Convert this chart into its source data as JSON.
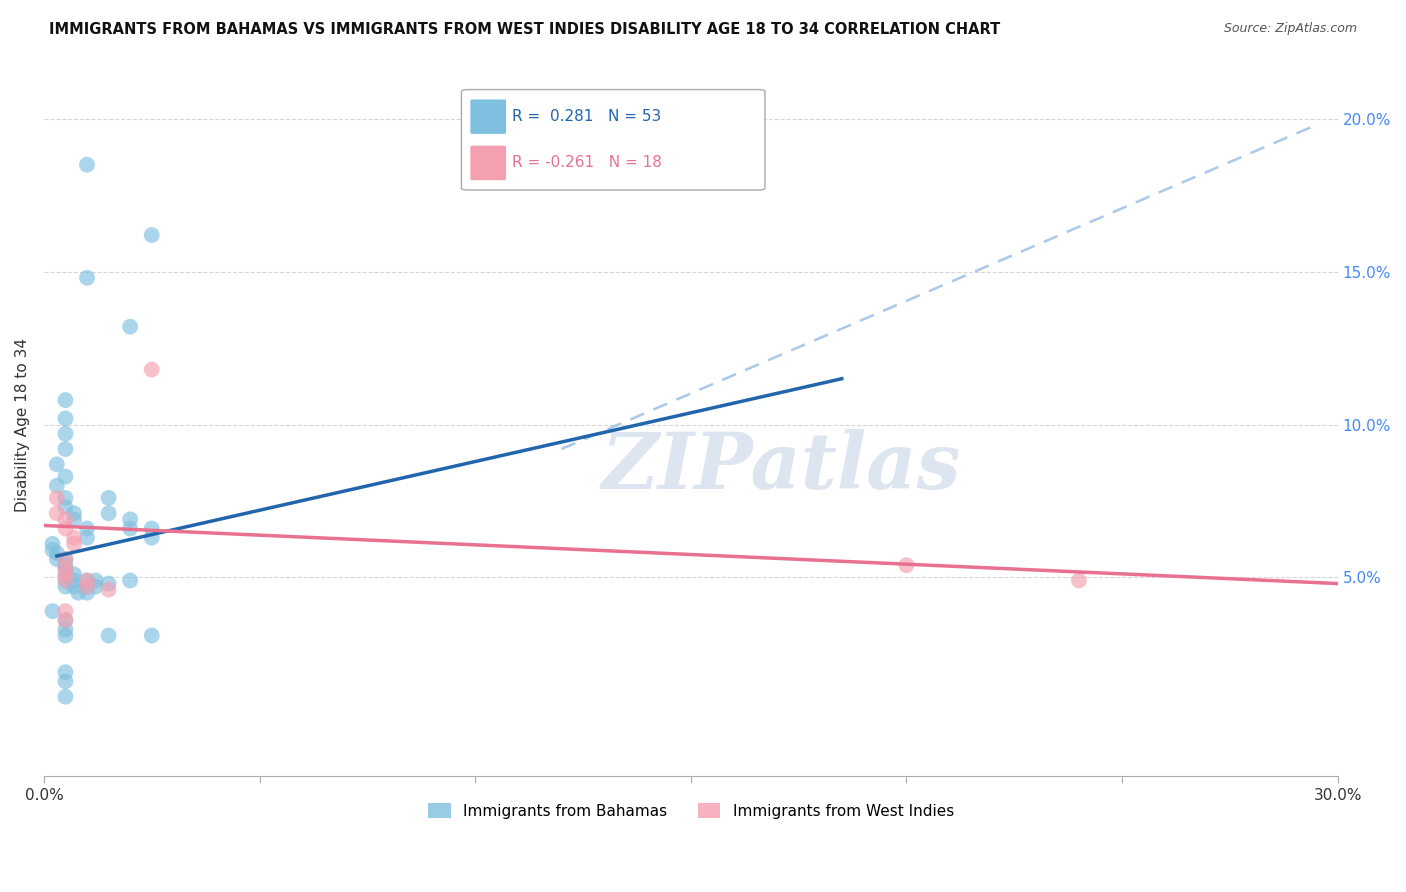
{
  "title": "IMMIGRANTS FROM BAHAMAS VS IMMIGRANTS FROM WEST INDIES DISABILITY AGE 18 TO 34 CORRELATION CHART",
  "source": "Source: ZipAtlas.com",
  "ylabel": "Disability Age 18 to 34",
  "legend_label_blue": "Immigrants from Bahamas",
  "legend_label_pink": "Immigrants from West Indies",
  "R_blue": 0.281,
  "N_blue": 53,
  "R_pink": -0.261,
  "N_pink": 18,
  "watermark": "ZIPatlas",
  "xlim": [
    0.0,
    0.3
  ],
  "ylim": [
    -0.015,
    0.215
  ],
  "y_ticks": [
    0.05,
    0.1,
    0.15,
    0.2
  ],
  "y_tick_labels": [
    "5.0%",
    "10.0%",
    "15.0%",
    "20.0%"
  ],
  "x_ticks": [
    0.0,
    0.05,
    0.1,
    0.15,
    0.2,
    0.25,
    0.3
  ],
  "x_tick_labels_show": {
    "0": "0.0%",
    "6": "30.0%"
  },
  "blue_line": [
    [
      0.003,
      0.057
    ],
    [
      0.185,
      0.115
    ]
  ],
  "dashed_line": [
    [
      0.12,
      0.092
    ],
    [
      0.295,
      0.198
    ]
  ],
  "pink_line": [
    [
      0.0,
      0.067
    ],
    [
      0.3,
      0.048
    ]
  ],
  "blue_dots": [
    [
      0.01,
      0.185
    ],
    [
      0.01,
      0.148
    ],
    [
      0.025,
      0.162
    ],
    [
      0.02,
      0.132
    ],
    [
      0.005,
      0.108
    ],
    [
      0.005,
      0.102
    ],
    [
      0.005,
      0.097
    ],
    [
      0.005,
      0.092
    ],
    [
      0.003,
      0.087
    ],
    [
      0.005,
      0.083
    ],
    [
      0.003,
      0.08
    ],
    [
      0.005,
      0.076
    ],
    [
      0.005,
      0.073
    ],
    [
      0.007,
      0.071
    ],
    [
      0.007,
      0.069
    ],
    [
      0.01,
      0.066
    ],
    [
      0.01,
      0.063
    ],
    [
      0.015,
      0.076
    ],
    [
      0.015,
      0.071
    ],
    [
      0.02,
      0.069
    ],
    [
      0.02,
      0.066
    ],
    [
      0.025,
      0.066
    ],
    [
      0.025,
      0.063
    ],
    [
      0.002,
      0.061
    ],
    [
      0.002,
      0.059
    ],
    [
      0.003,
      0.058
    ],
    [
      0.003,
      0.056
    ],
    [
      0.005,
      0.056
    ],
    [
      0.005,
      0.054
    ],
    [
      0.005,
      0.053
    ],
    [
      0.005,
      0.051
    ],
    [
      0.005,
      0.049
    ],
    [
      0.005,
      0.047
    ],
    [
      0.007,
      0.051
    ],
    [
      0.007,
      0.049
    ],
    [
      0.007,
      0.047
    ],
    [
      0.008,
      0.045
    ],
    [
      0.01,
      0.049
    ],
    [
      0.01,
      0.047
    ],
    [
      0.01,
      0.045
    ],
    [
      0.012,
      0.049
    ],
    [
      0.012,
      0.047
    ],
    [
      0.015,
      0.048
    ],
    [
      0.02,
      0.049
    ],
    [
      0.002,
      0.039
    ],
    [
      0.005,
      0.036
    ],
    [
      0.005,
      0.033
    ],
    [
      0.005,
      0.031
    ],
    [
      0.015,
      0.031
    ],
    [
      0.025,
      0.031
    ],
    [
      0.005,
      0.019
    ],
    [
      0.005,
      0.016
    ],
    [
      0.005,
      0.011
    ]
  ],
  "pink_dots": [
    [
      0.025,
      0.118
    ],
    [
      0.003,
      0.076
    ],
    [
      0.003,
      0.071
    ],
    [
      0.005,
      0.069
    ],
    [
      0.005,
      0.066
    ],
    [
      0.007,
      0.063
    ],
    [
      0.007,
      0.061
    ],
    [
      0.005,
      0.056
    ],
    [
      0.005,
      0.053
    ],
    [
      0.005,
      0.051
    ],
    [
      0.005,
      0.049
    ],
    [
      0.01,
      0.049
    ],
    [
      0.01,
      0.047
    ],
    [
      0.015,
      0.046
    ],
    [
      0.005,
      0.039
    ],
    [
      0.005,
      0.036
    ],
    [
      0.2,
      0.054
    ],
    [
      0.24,
      0.049
    ]
  ],
  "blue_color": "#7fbfdf",
  "pink_color": "#f4a0b0",
  "blue_line_color": "#2166ac",
  "pink_line_color": "#e87090",
  "dashed_line_color": "#aac8e8",
  "grid_color": "#cccccc",
  "title_color": "#111111",
  "source_color": "#555555",
  "watermark_color": "#dde5f0",
  "ytick_color": "#4488ff",
  "xtick_color": "#333333"
}
